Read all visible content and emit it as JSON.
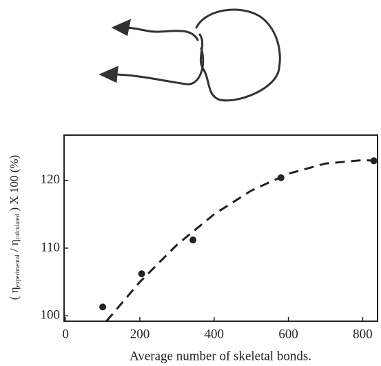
{
  "chart_data": {
    "type": "scatter",
    "x_label": "Average number of skeletal bonds.",
    "y_label_segments": [
      "( η",
      "experimental",
      " / η",
      "calculated",
      " ) X 100 (%)"
    ],
    "x": [
      100,
      205,
      343,
      580,
      830
    ],
    "values": [
      101.3,
      106.2,
      111.2,
      120.4,
      122.9
    ],
    "color": "#222222",
    "curve": {
      "x": [
        110,
        200,
        300,
        400,
        500,
        600,
        700,
        800,
        840
      ],
      "values": [
        99.2,
        105.0,
        110.5,
        115.0,
        118.5,
        121.0,
        122.5,
        123.0,
        122.9
      ]
    },
    "xlim": [
      -4,
      840
    ],
    "ylim": [
      99.2,
      126.7
    ],
    "xticks": [
      0,
      200,
      400,
      600,
      800
    ],
    "yticks": [
      100,
      110,
      120
    ]
  }
}
